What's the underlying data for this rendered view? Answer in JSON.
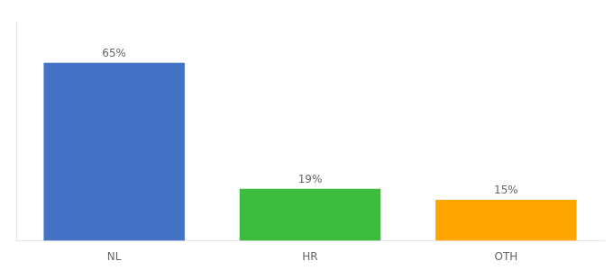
{
  "chart_data": {
    "type": "bar",
    "categories": [
      "NL",
      "HR",
      "OTH"
    ],
    "values": [
      65,
      19,
      15
    ],
    "value_labels": [
      "65%",
      "19%",
      "15%"
    ],
    "colors": [
      "#4472C4",
      "#3CBB3C",
      "#FFA500"
    ],
    "ylim": [
      0,
      80
    ],
    "data_labels": true,
    "tick_labels": "x",
    "grid": false
  }
}
